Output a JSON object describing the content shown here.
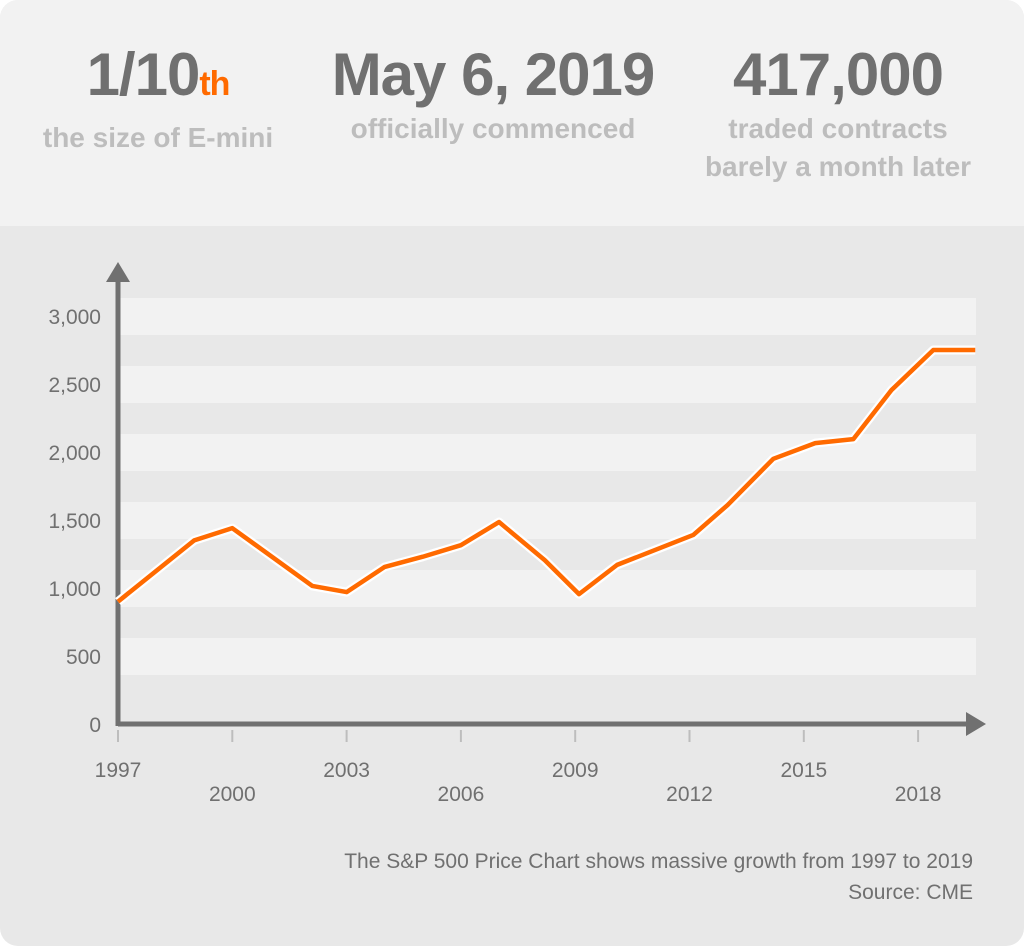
{
  "stats": [
    {
      "value": "1/10",
      "suffix": "th",
      "lines": [
        "the size of E-mini"
      ]
    },
    {
      "value": "May 6, 2019",
      "suffix": "",
      "lines": [
        "officially commenced"
      ]
    },
    {
      "value": "417,000",
      "suffix": "",
      "lines": [
        "traded contracts",
        "barely a month later"
      ]
    }
  ],
  "colors": {
    "accent": "#ff6a00",
    "text_dark": "#707070",
    "text_light": "#bdbdbd",
    "axis": "#707070"
  },
  "chart_data": {
    "type": "line",
    "title": "",
    "xlabel": "",
    "ylabel": "",
    "xlim": [
      1997,
      2019.5
    ],
    "ylim": [
      0,
      3000
    ],
    "x_ticks": [
      "1997",
      "2000",
      "2003",
      "2006",
      "2009",
      "2012",
      "2015",
      "2018"
    ],
    "y_ticks": [
      "0",
      "500",
      "1,000",
      "1,500",
      "2,000",
      "2,500",
      "3,000"
    ],
    "grid": "alternating horizontal bands",
    "series": [
      {
        "color": "#ff6a00",
        "x": [
          1997,
          1999,
          2000,
          2002.1,
          2003,
          2004,
          2005,
          2006,
          2007,
          2008.2,
          2009.1,
          2010.1,
          2012.1,
          2013,
          2014.2,
          2015.3,
          2016.3,
          2017.3,
          2018.4,
          2019.5
        ],
        "y": [
          900,
          1350,
          1440,
          1015,
          970,
          1155,
          1230,
          1315,
          1485,
          1205,
          955,
          1170,
          1390,
          1610,
          1950,
          2065,
          2095,
          2455,
          2750,
          2750
        ]
      }
    ]
  },
  "caption": {
    "line1": "The S&P 500 Price Chart shows massive growth from 1997 to 2019",
    "line2": "Source: CME"
  }
}
